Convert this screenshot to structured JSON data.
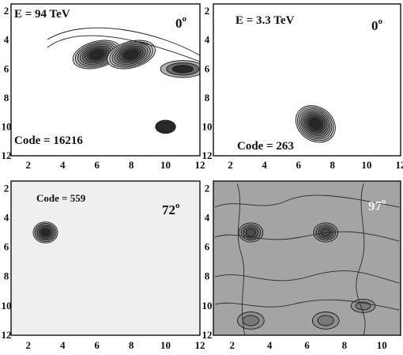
{
  "chart_data": [
    {
      "type": "contour",
      "energy_label": "E = 94 TeV",
      "code_label": "Code = 16216",
      "angle": "0",
      "x_ticks": [
        "2",
        "4",
        "6",
        "8",
        "10",
        "12"
      ],
      "y_ticks": [
        "2",
        "4",
        "6",
        "8",
        "10",
        "12"
      ],
      "xlim": [
        1,
        12
      ],
      "ylim": [
        12,
        1.5
      ],
      "background": "#ffffff",
      "peaks": [
        {
          "x": 6,
          "y": 5,
          "level": 8
        },
        {
          "x": 8,
          "y": 5,
          "level": 8
        },
        {
          "x": 11,
          "y": 6,
          "level": 3
        },
        {
          "x": 10,
          "y": 10,
          "level": 1
        }
      ]
    },
    {
      "type": "contour",
      "energy_label": "E = 3.3 TeV",
      "code_label": "Code = 263",
      "angle": "0",
      "x_ticks": [
        "2",
        "4",
        "6",
        "8",
        "10",
        "12"
      ],
      "y_ticks": [
        "2",
        "4",
        "6",
        "8",
        "10",
        "12"
      ],
      "xlim": [
        1,
        12
      ],
      "ylim": [
        12,
        1.5
      ],
      "background": "#ffffff",
      "peaks": [
        {
          "x": 7,
          "y": 9.8,
          "level": 9
        }
      ]
    },
    {
      "type": "contour",
      "code_label": "Code = 559",
      "angle": "72",
      "x_ticks": [
        "2",
        "4",
        "6",
        "8",
        "10",
        "12"
      ],
      "y_ticks": [
        "2",
        "4",
        "6",
        "8",
        "10",
        "12"
      ],
      "xlim": [
        1,
        12
      ],
      "ylim": [
        12,
        1.5
      ],
      "background": "#efefef",
      "peaks": [
        {
          "x": 3,
          "y": 5,
          "level": 7
        }
      ]
    },
    {
      "type": "contour",
      "angle": "97",
      "x_ticks": [
        "2",
        "4",
        "6",
        "8",
        "10"
      ],
      "y_ticks": [
        "2",
        "4",
        "6",
        "8",
        "10",
        "12"
      ],
      "xlim": [
        1,
        11
      ],
      "ylim": [
        12,
        1.5
      ],
      "background": "#a4a4a4",
      "peaks": [
        {
          "x": 3,
          "y": 5,
          "level": 4
        },
        {
          "x": 7,
          "y": 5,
          "level": 4
        },
        {
          "x": 9,
          "y": 10,
          "level": 2
        },
        {
          "x": 3,
          "y": 11,
          "level": 2
        },
        {
          "x": 7,
          "y": 11,
          "level": 2
        }
      ]
    }
  ],
  "degree_symbol": "o"
}
